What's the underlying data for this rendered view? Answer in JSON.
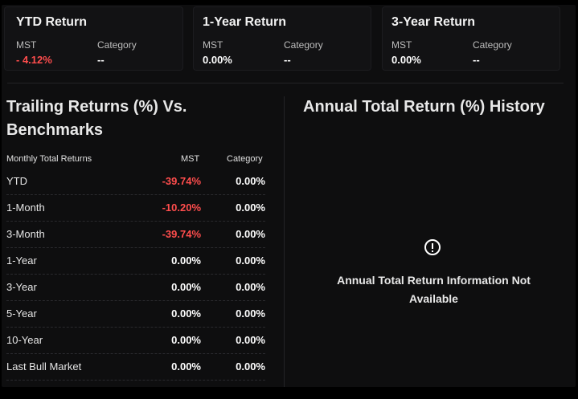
{
  "summary_cards": [
    {
      "title": "YTD Return",
      "mst_label": "MST",
      "mst_value": "- 4.12%",
      "category_label": "Category",
      "category_value": "--"
    },
    {
      "title": "1-Year Return",
      "mst_label": "MST",
      "mst_value": "0.00%",
      "category_label": "Category",
      "category_value": "--"
    },
    {
      "title": "3-Year Return",
      "mst_label": "MST",
      "mst_value": "0.00%",
      "category_label": "Category",
      "category_value": "--"
    }
  ],
  "trailing": {
    "title_line1": "Trailing Returns (%) Vs.",
    "title_line2": "Benchmarks",
    "col_label": "Monthly Total Returns",
    "col_mst": "MST",
    "col_category": "Category",
    "rows": [
      {
        "label": "YTD",
        "mst": "-39.74%",
        "category": "0.00%"
      },
      {
        "label": "1-Month",
        "mst": "-10.20%",
        "category": "0.00%"
      },
      {
        "label": "3-Month",
        "mst": "-39.74%",
        "category": "0.00%"
      },
      {
        "label": "1-Year",
        "mst": "0.00%",
        "category": "0.00%"
      },
      {
        "label": "3-Year",
        "mst": "0.00%",
        "category": "0.00%"
      },
      {
        "label": "5-Year",
        "mst": "0.00%",
        "category": "0.00%"
      },
      {
        "label": "10-Year",
        "mst": "0.00%",
        "category": "0.00%"
      },
      {
        "label": "Last Bull Market",
        "mst": "0.00%",
        "category": "0.00%"
      }
    ]
  },
  "annual": {
    "title": "Annual Total Return (%) History",
    "icon": "info-circle-icon",
    "message_line1": "Annual Total Return Information Not",
    "message_line2": "Available"
  },
  "colors": {
    "negative": "#ff4d4d",
    "background": "#0e0e0f",
    "text": "#ffffff"
  }
}
